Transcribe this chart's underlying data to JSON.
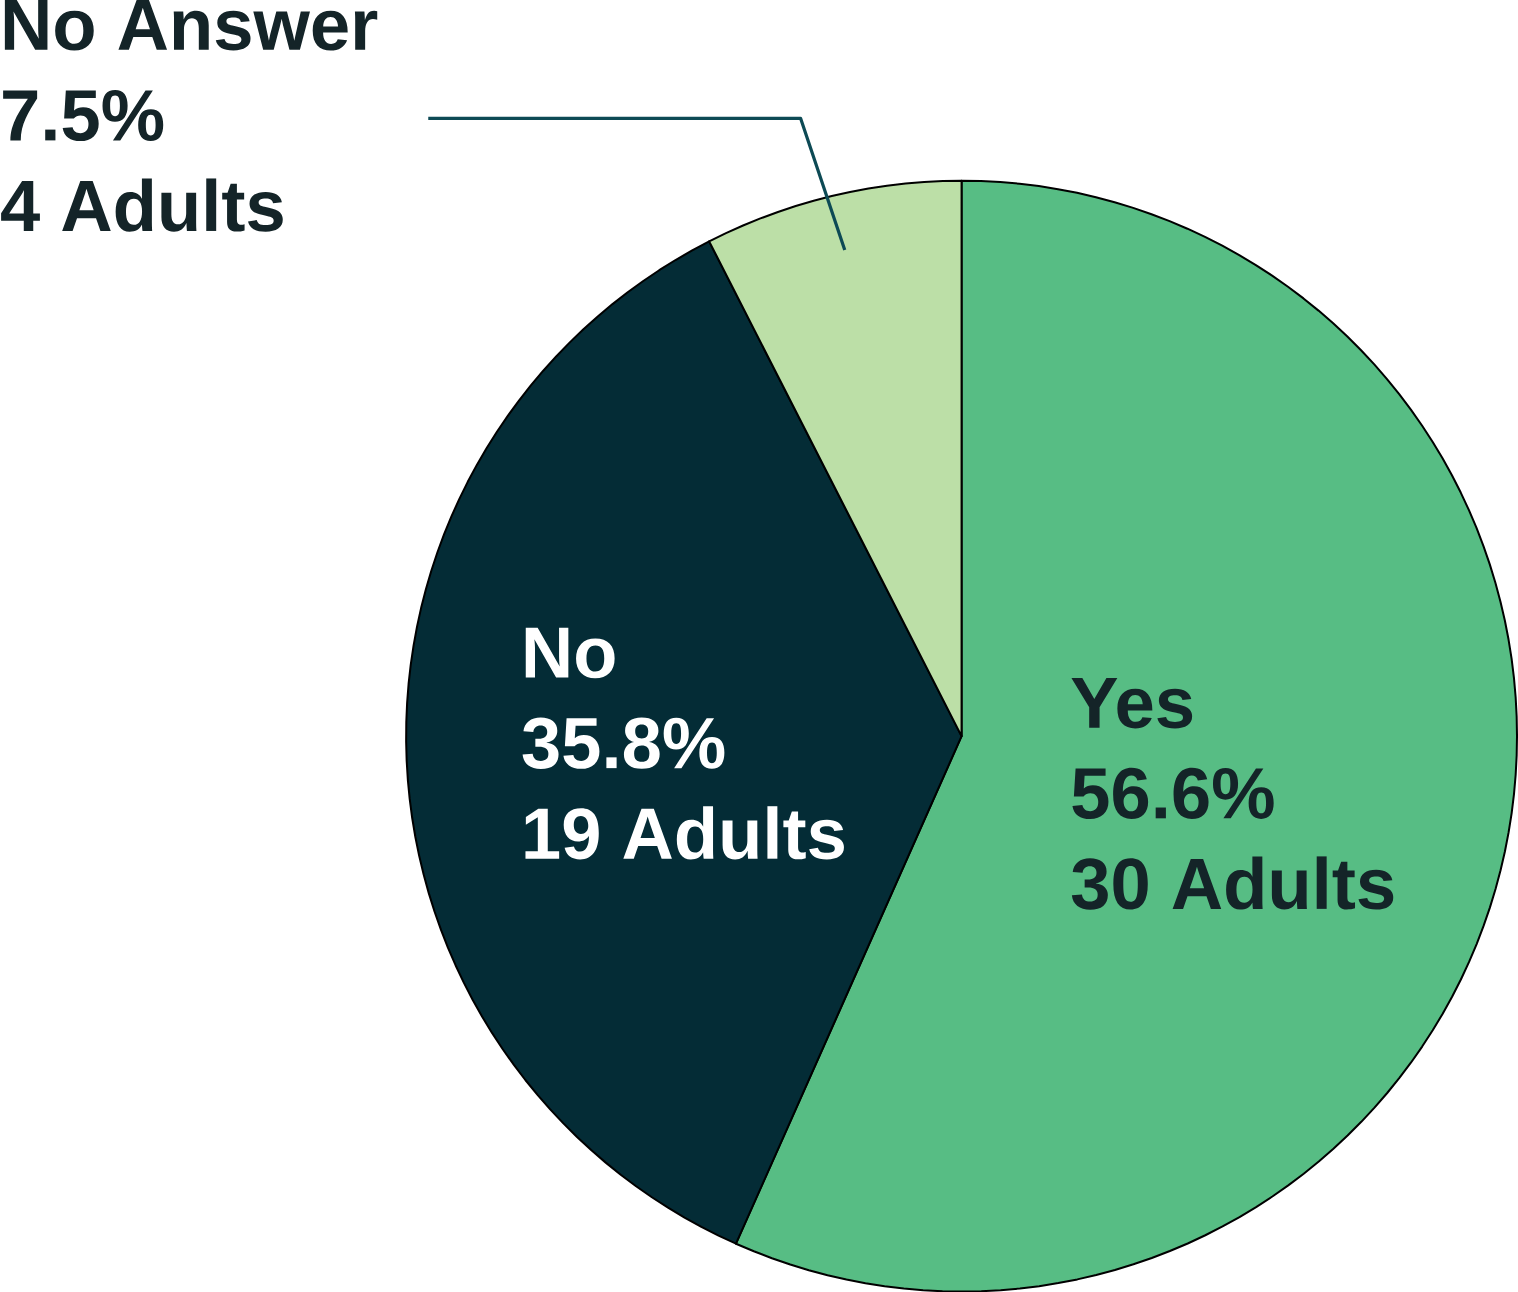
{
  "chart_data": {
    "type": "pie",
    "categories": [
      "Yes",
      "No",
      "No Answer"
    ],
    "values": [
      56.6,
      35.8,
      7.5
    ],
    "colors": [
      "#57bd84",
      "#042c36",
      "#bcdfa7"
    ],
    "value_labels": [
      "56.6%",
      "35.8%",
      "7.5%"
    ],
    "annotations": [
      "30 Adults",
      "19 Adults",
      "4 Adults"
    ]
  }
}
